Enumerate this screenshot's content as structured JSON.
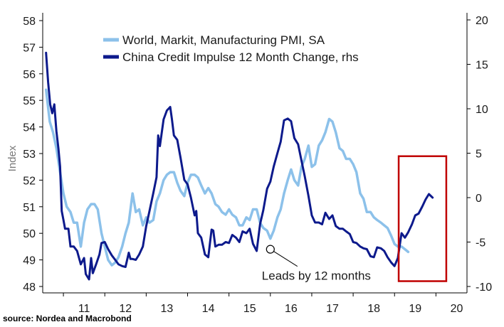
{
  "chart_data": {
    "type": "line",
    "title": "",
    "ylabel_left": "Index",
    "ylim_left": [
      48,
      58
    ],
    "yticks_left": [
      "48",
      "49",
      "50",
      "51",
      "52",
      "53",
      "54",
      "55",
      "56",
      "57",
      "58"
    ],
    "ylim_right": [
      -10,
      20
    ],
    "yticks_right": [
      "-10",
      "-5",
      "0",
      "5",
      "10",
      "15",
      "20"
    ],
    "xlim": [
      2010.5,
      2020.75
    ],
    "x_tick_labels": [
      {
        "label": "11",
        "x": 2011.5
      },
      {
        "label": "12",
        "x": 2012.5
      },
      {
        "label": "13",
        "x": 2013.5
      },
      {
        "label": "14",
        "x": 2014.5
      },
      {
        "label": "15",
        "x": 2015.5
      },
      {
        "label": "16",
        "x": 2016.5
      },
      {
        "label": "17",
        "x": 2017.5
      },
      {
        "label": "18",
        "x": 2018.5
      },
      {
        "label": "19",
        "x": 2019.5
      },
      {
        "label": "20",
        "x": 2020.5
      }
    ],
    "series": [
      {
        "name": "World, Markit, Manufacturing PMI, SA",
        "axis": "left",
        "color": "#8cc1ea",
        "points": [
          [
            2010.58,
            55.4
          ],
          [
            2010.67,
            54.2
          ],
          [
            2010.75,
            53.8
          ],
          [
            2010.83,
            53.2
          ],
          [
            2010.92,
            52.3
          ],
          [
            2011.0,
            51.5
          ],
          [
            2011.08,
            51.0
          ],
          [
            2011.17,
            50.8
          ],
          [
            2011.25,
            50.4
          ],
          [
            2011.33,
            50.4
          ],
          [
            2011.42,
            49.5
          ],
          [
            2011.5,
            50.4
          ],
          [
            2011.58,
            50.9
          ],
          [
            2011.67,
            51.1
          ],
          [
            2011.75,
            51.1
          ],
          [
            2011.83,
            50.9
          ],
          [
            2011.92,
            50.0
          ],
          [
            2012.0,
            49.5
          ],
          [
            2012.08,
            49.0
          ],
          [
            2012.17,
            48.8
          ],
          [
            2012.25,
            48.9
          ],
          [
            2012.33,
            49.1
          ],
          [
            2012.42,
            49.5
          ],
          [
            2012.5,
            50.0
          ],
          [
            2012.58,
            50.4
          ],
          [
            2012.67,
            51.5
          ],
          [
            2012.75,
            50.8
          ],
          [
            2012.83,
            50.9
          ],
          [
            2012.92,
            50.3
          ],
          [
            2013.0,
            50.6
          ],
          [
            2013.08,
            50.4
          ],
          [
            2013.17,
            50.5
          ],
          [
            2013.25,
            51.2
          ],
          [
            2013.33,
            51.5
          ],
          [
            2013.42,
            52.0
          ],
          [
            2013.5,
            52.2
          ],
          [
            2013.58,
            52.3
          ],
          [
            2013.67,
            52.3
          ],
          [
            2013.75,
            51.9
          ],
          [
            2013.83,
            51.6
          ],
          [
            2013.92,
            51.4
          ],
          [
            2014.0,
            51.9
          ],
          [
            2014.08,
            52.2
          ],
          [
            2014.17,
            52.2
          ],
          [
            2014.25,
            52.1
          ],
          [
            2014.33,
            51.8
          ],
          [
            2014.42,
            51.5
          ],
          [
            2014.5,
            51.7
          ],
          [
            2014.58,
            51.5
          ],
          [
            2014.67,
            51.1
          ],
          [
            2014.75,
            51.0
          ],
          [
            2014.83,
            50.8
          ],
          [
            2014.92,
            50.7
          ],
          [
            2015.0,
            50.9
          ],
          [
            2015.08,
            50.7
          ],
          [
            2015.17,
            50.6
          ],
          [
            2015.25,
            50.3
          ],
          [
            2015.33,
            50.3
          ],
          [
            2015.42,
            50.6
          ],
          [
            2015.5,
            50.5
          ],
          [
            2015.58,
            50.9
          ],
          [
            2015.67,
            50.9
          ],
          [
            2015.75,
            50.4
          ],
          [
            2015.83,
            50.2
          ],
          [
            2015.92,
            50.1
          ],
          [
            2016.0,
            49.8
          ],
          [
            2016.08,
            50.1
          ],
          [
            2016.17,
            50.6
          ],
          [
            2016.25,
            50.9
          ],
          [
            2016.33,
            51.5
          ],
          [
            2016.42,
            52.0
          ],
          [
            2016.5,
            52.4
          ],
          [
            2016.58,
            52.0
          ],
          [
            2016.67,
            51.8
          ],
          [
            2016.75,
            52.5
          ],
          [
            2016.83,
            52.8
          ],
          [
            2016.92,
            53.3
          ],
          [
            2017.0,
            52.5
          ],
          [
            2017.08,
            52.6
          ],
          [
            2017.17,
            53.3
          ],
          [
            2017.25,
            53.5
          ],
          [
            2017.33,
            53.8
          ],
          [
            2017.42,
            54.3
          ],
          [
            2017.5,
            54.2
          ],
          [
            2017.58,
            53.8
          ],
          [
            2017.67,
            53.2
          ],
          [
            2017.75,
            53.1
          ],
          [
            2017.83,
            52.8
          ],
          [
            2017.92,
            52.8
          ],
          [
            2018.0,
            52.6
          ],
          [
            2018.08,
            52.3
          ],
          [
            2018.17,
            51.5
          ],
          [
            2018.25,
            51.3
          ],
          [
            2018.33,
            50.8
          ],
          [
            2018.42,
            50.8
          ],
          [
            2018.5,
            50.6
          ],
          [
            2018.58,
            50.5
          ],
          [
            2018.67,
            50.4
          ],
          [
            2018.75,
            50.3
          ],
          [
            2018.83,
            50.2
          ],
          [
            2018.92,
            49.9
          ],
          [
            2019.0,
            49.6
          ],
          [
            2019.08,
            49.5
          ],
          [
            2019.17,
            49.5
          ],
          [
            2019.25,
            49.4
          ],
          [
            2019.33,
            49.3
          ]
        ]
      },
      {
        "name": "China Credit Impulse 12 Month Change, rhs",
        "axis": "right",
        "color": "#0d1a8c",
        "points": [
          [
            2010.58,
            16.3
          ],
          [
            2010.63,
            13.0
          ],
          [
            2010.68,
            10.5
          ],
          [
            2010.73,
            9.5
          ],
          [
            2010.78,
            10.5
          ],
          [
            2010.83,
            7.5
          ],
          [
            2010.88,
            5.5
          ],
          [
            2010.92,
            3.5
          ],
          [
            2010.96,
            -1.5
          ],
          [
            2011.0,
            -2.5
          ],
          [
            2011.04,
            -3.5
          ],
          [
            2011.12,
            -3.5
          ],
          [
            2011.17,
            -5.5
          ],
          [
            2011.25,
            -5.5
          ],
          [
            2011.33,
            -6.0
          ],
          [
            2011.42,
            -7.5
          ],
          [
            2011.5,
            -6.8
          ],
          [
            2011.54,
            -8.6
          ],
          [
            2011.62,
            -9.2
          ],
          [
            2011.67,
            -6.8
          ],
          [
            2011.71,
            -8.5
          ],
          [
            2011.79,
            -7.5
          ],
          [
            2011.87,
            -6.4
          ],
          [
            2011.92,
            -5.1
          ],
          [
            2012.0,
            -5.0
          ],
          [
            2012.08,
            -5.8
          ],
          [
            2012.17,
            -6.5
          ],
          [
            2012.25,
            -7.0
          ],
          [
            2012.33,
            -7.5
          ],
          [
            2012.42,
            -7.7
          ],
          [
            2012.5,
            -7.8
          ],
          [
            2012.58,
            -6.2
          ],
          [
            2012.62,
            -6.9
          ],
          [
            2012.67,
            -6.9
          ],
          [
            2012.75,
            -7.0
          ],
          [
            2012.83,
            -6.4
          ],
          [
            2012.92,
            -5.5
          ],
          [
            2013.0,
            -3.2
          ],
          [
            2013.08,
            -1.5
          ],
          [
            2013.17,
            0.5
          ],
          [
            2013.25,
            2.3
          ],
          [
            2013.29,
            7.0
          ],
          [
            2013.33,
            5.8
          ],
          [
            2013.42,
            8.8
          ],
          [
            2013.5,
            9.8
          ],
          [
            2013.58,
            10.2
          ],
          [
            2013.62,
            8.9
          ],
          [
            2013.67,
            7.0
          ],
          [
            2013.75,
            6.5
          ],
          [
            2013.83,
            4.5
          ],
          [
            2013.92,
            2.0
          ],
          [
            2014.0,
            1.5
          ],
          [
            2014.08,
            0.0
          ],
          [
            2014.17,
            -2.0
          ],
          [
            2014.21,
            -1.5
          ],
          [
            2014.25,
            -4.0
          ],
          [
            2014.33,
            -4.5
          ],
          [
            2014.42,
            -6.4
          ],
          [
            2014.5,
            -6.7
          ],
          [
            2014.58,
            -3.6
          ],
          [
            2014.62,
            -3.7
          ],
          [
            2014.67,
            -5.5
          ],
          [
            2014.75,
            -5.3
          ],
          [
            2014.83,
            -5.3
          ],
          [
            2014.92,
            -5.0
          ],
          [
            2015.0,
            -5.1
          ],
          [
            2015.08,
            -4.2
          ],
          [
            2015.17,
            -4.5
          ],
          [
            2015.25,
            -5.0
          ],
          [
            2015.33,
            -3.8
          ],
          [
            2015.42,
            -4.0
          ],
          [
            2015.5,
            -3.5
          ],
          [
            2015.58,
            -5.2
          ],
          [
            2015.67,
            -6.0
          ],
          [
            2015.75,
            -3.0
          ],
          [
            2015.83,
            -1.4
          ],
          [
            2015.92,
            1.0
          ],
          [
            2016.0,
            1.8
          ],
          [
            2016.08,
            3.5
          ],
          [
            2016.17,
            5.0
          ],
          [
            2016.25,
            6.3
          ],
          [
            2016.33,
            8.7
          ],
          [
            2016.42,
            8.9
          ],
          [
            2016.5,
            8.6
          ],
          [
            2016.58,
            6.7
          ],
          [
            2016.67,
            6.0
          ],
          [
            2016.75,
            4.2
          ],
          [
            2016.83,
            2.4
          ],
          [
            2016.92,
            0.2
          ],
          [
            2017.0,
            -2.0
          ],
          [
            2017.08,
            -2.8
          ],
          [
            2017.17,
            -2.8
          ],
          [
            2017.25,
            -3.0
          ],
          [
            2017.33,
            -1.7
          ],
          [
            2017.42,
            -2.4
          ],
          [
            2017.5,
            -2.0
          ],
          [
            2017.58,
            -3.2
          ],
          [
            2017.67,
            -3.5
          ],
          [
            2017.75,
            -3.5
          ],
          [
            2017.83,
            -3.8
          ],
          [
            2017.92,
            -4.1
          ],
          [
            2018.0,
            -5.0
          ],
          [
            2018.08,
            -5.1
          ],
          [
            2018.17,
            -5.5
          ],
          [
            2018.25,
            -5.7
          ],
          [
            2018.33,
            -5.8
          ],
          [
            2018.42,
            -6.6
          ],
          [
            2018.5,
            -6.7
          ],
          [
            2018.58,
            -5.6
          ],
          [
            2018.67,
            -5.7
          ],
          [
            2018.75,
            -6.0
          ],
          [
            2018.83,
            -6.7
          ],
          [
            2018.92,
            -7.3
          ],
          [
            2019.0,
            -7.7
          ],
          [
            2019.08,
            -6.8
          ],
          [
            2019.17,
            -4.0
          ],
          [
            2019.25,
            -4.5
          ],
          [
            2019.33,
            -3.9
          ],
          [
            2019.42,
            -3.0
          ],
          [
            2019.5,
            -2.0
          ],
          [
            2019.58,
            -1.8
          ],
          [
            2019.67,
            -1.0
          ],
          [
            2019.75,
            -0.2
          ],
          [
            2019.83,
            0.4
          ],
          [
            2019.92,
            0.0
          ]
        ]
      }
    ],
    "annotation": {
      "text": "Leads by 12 months",
      "x": 2016.0,
      "y_left": 49.4
    },
    "highlight_box": {
      "x_range": [
        2019.1,
        2020.25
      ],
      "y_range_left": [
        48.2,
        52.9
      ],
      "color": "#c00000"
    },
    "source": "source: Nordea and Macrobond"
  }
}
